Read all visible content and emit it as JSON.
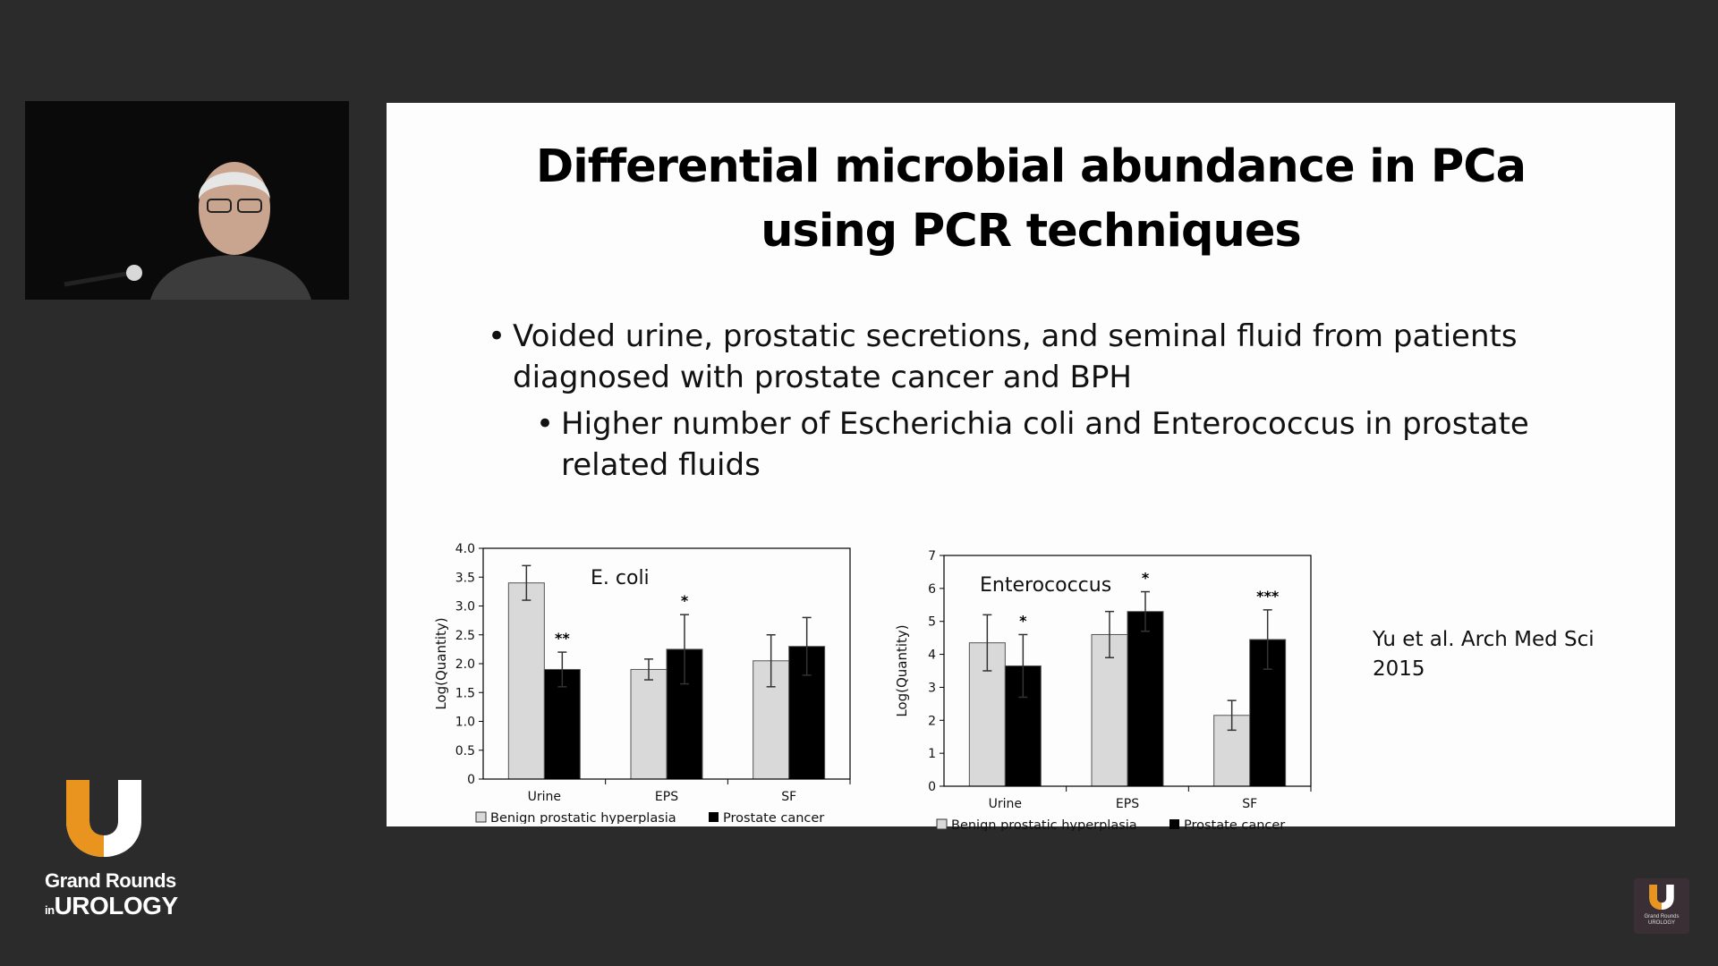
{
  "slide": {
    "title_line1": "Differential microbial abundance in PCa",
    "title_line2": "using PCR techniques",
    "bullet1": "Voided urine, prostatic secretions, and seminal fluid from patients diagnosed with prostate cancer and BPH",
    "bullet2": "Higher number of Escherichia coli  and Enterococcus in prostate related fluids",
    "citation_line1": "Yu et al. Arch Med Sci",
    "citation_line2": "2015"
  },
  "branding": {
    "logo_line1": "Grand Rounds",
    "logo_in": "in",
    "logo_line2": "UROLOGY",
    "orange": "#e8941e",
    "white": "#ffffff"
  },
  "chart_data": [
    {
      "type": "bar",
      "title": "E. coli",
      "ylabel": "Log(Quantity)",
      "ylim": [
        0,
        4.0
      ],
      "yticks": [
        "0",
        "0.5",
        "1.0",
        "1.5",
        "2.0",
        "2.5",
        "3.0",
        "3.5",
        "4.0"
      ],
      "yticks_values": [
        0,
        0.5,
        1.0,
        1.5,
        2.0,
        2.5,
        3.0,
        3.5,
        4.0
      ],
      "categories": [
        "Urine",
        "EPS",
        "SF"
      ],
      "series": [
        {
          "name": "Benign prostatic hyperplasia",
          "color": "#d9d9d9",
          "values": [
            3.4,
            1.9,
            2.05
          ],
          "errors": [
            0.3,
            0.18,
            0.45
          ]
        },
        {
          "name": "Prostate cancer",
          "color": "#000000",
          "values": [
            1.9,
            2.25,
            2.3
          ],
          "errors": [
            0.3,
            0.6,
            0.5
          ]
        }
      ],
      "significance": [
        "**",
        "*",
        ""
      ],
      "legend_position": "bottom",
      "grid": false
    },
    {
      "type": "bar",
      "title": "Enterococcus",
      "ylabel": "Log(Quantity)",
      "ylim": [
        0,
        7
      ],
      "yticks": [
        "0",
        "1",
        "2",
        "3",
        "4",
        "5",
        "6",
        "7"
      ],
      "yticks_values": [
        0,
        1,
        2,
        3,
        4,
        5,
        6,
        7
      ],
      "categories": [
        "Urine",
        "EPS",
        "SF"
      ],
      "series": [
        {
          "name": "Benign prostatic hyperplasia",
          "color": "#d9d9d9",
          "values": [
            4.35,
            4.6,
            2.15
          ],
          "errors": [
            0.85,
            0.7,
            0.45
          ]
        },
        {
          "name": "Prostate cancer",
          "color": "#000000",
          "values": [
            3.65,
            5.3,
            4.45
          ],
          "errors": [
            0.95,
            0.6,
            0.9
          ]
        }
      ],
      "significance": [
        "*",
        "*",
        "***"
      ],
      "legend_position": "bottom",
      "grid": false
    }
  ]
}
